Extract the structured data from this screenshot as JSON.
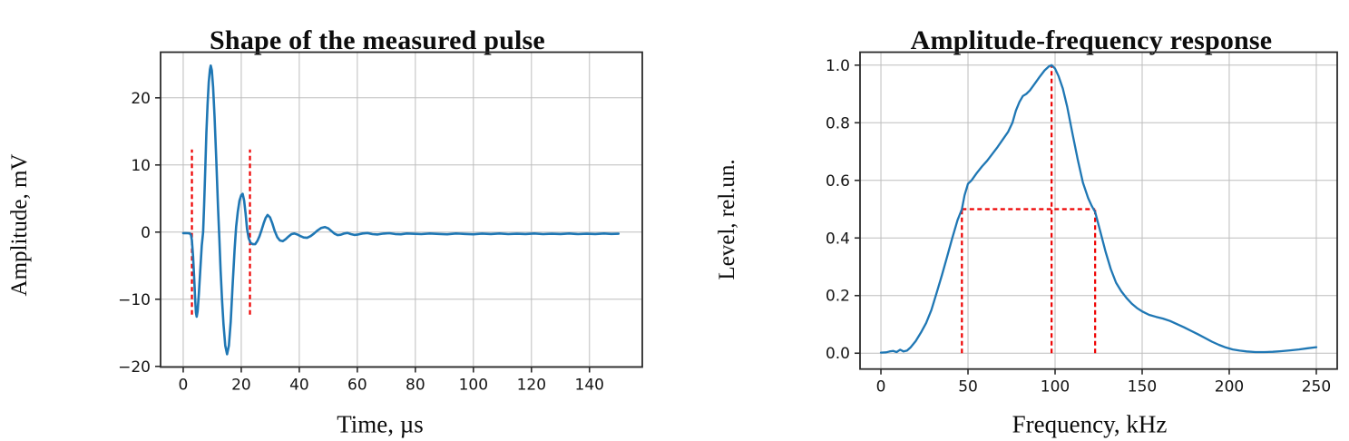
{
  "page": {
    "background": "#ffffff"
  },
  "chart_data": [
    {
      "type": "line",
      "title": "Shape of the measured pulse",
      "xlabel": "Time, µs",
      "ylabel": "Amplitude, mV",
      "xlim": [
        -7.8,
        158.2
      ],
      "ylim": [
        -20.1,
        26.8
      ],
      "grid": true,
      "legend": "none",
      "line_color": "#1f77b4",
      "annotation_color": "#ee0000",
      "xticks": [
        {
          "v": 0,
          "label": "0"
        },
        {
          "v": 20,
          "label": "20"
        },
        {
          "v": 40,
          "label": "40"
        },
        {
          "v": 60,
          "label": "60"
        },
        {
          "v": 80,
          "label": "80"
        },
        {
          "v": 100,
          "label": "100"
        },
        {
          "v": 120,
          "label": "120"
        },
        {
          "v": 140,
          "label": "140"
        }
      ],
      "yticks": [
        {
          "v": -20,
          "label": "−20"
        },
        {
          "v": -10,
          "label": "−10"
        },
        {
          "v": 0,
          "label": "0"
        },
        {
          "v": 10,
          "label": "10"
        },
        {
          "v": 20,
          "label": "20"
        }
      ],
      "series": [
        {
          "name": "measured-pulse",
          "x": [
            0,
            0.8,
            1.6,
            2.3,
            2.7,
            3,
            3.4,
            3.8,
            4.1,
            4.4,
            4.65,
            4.95,
            5.4,
            5.9,
            6.4,
            6.85,
            7.2,
            7.6,
            8,
            8.4,
            8.8,
            9.2,
            9.5,
            9.85,
            10.3,
            10.8,
            11.4,
            12,
            12.45,
            12.9,
            13.4,
            13.9,
            14.5,
            15.1,
            15.75,
            16.35,
            17,
            17.7,
            18.25,
            18.8,
            19.4,
            20,
            20.5,
            21,
            21.5,
            22,
            22.55,
            23.2,
            24,
            24.8,
            25.6,
            26.3,
            27,
            27.7,
            28.4,
            29.1,
            29.9,
            30.7,
            31.5,
            32.4,
            33.3,
            34.3,
            35.3,
            36.3,
            37.3,
            38.3,
            39.3,
            40.4,
            41.5,
            42.7,
            43.9,
            45.1,
            46.3,
            47.5,
            48.8,
            50,
            51.1,
            52.2,
            53.2,
            54.3,
            55.4,
            56.6,
            57.8,
            59,
            60.3,
            61.8,
            63.5,
            65.2,
            67,
            69,
            71,
            73,
            75,
            77,
            79,
            82,
            85,
            88,
            91,
            94,
            97,
            100,
            103,
            106,
            109,
            112,
            115,
            118,
            121,
            124,
            127,
            130,
            133,
            136,
            139,
            142,
            145,
            147.5,
            150
          ],
          "y": [
            -0.15,
            -0.15,
            -0.17,
            -0.2,
            -0.45,
            -1.2,
            -3.6,
            -7,
            -10,
            -12,
            -12.6,
            -11.8,
            -9.2,
            -5.6,
            -2,
            0,
            4,
            9.5,
            14.8,
            19,
            22.3,
            24.2,
            24.8,
            24.1,
            21.6,
            17.2,
            10.8,
            3.8,
            -1,
            -5.8,
            -10.2,
            -13.8,
            -16.9,
            -18.2,
            -16.9,
            -13.4,
            -8.2,
            -2.6,
            0.8,
            3,
            4.7,
            5.5,
            5.7,
            4.7,
            2.8,
            0.5,
            -0.9,
            -1.6,
            -1.8,
            -1.8,
            -1.3,
            -0.6,
            0.3,
            1.3,
            2.1,
            2.55,
            2.2,
            1.3,
            0.2,
            -0.75,
            -1.25,
            -1.35,
            -1.05,
            -0.65,
            -0.3,
            -0.2,
            -0.35,
            -0.6,
            -0.8,
            -0.85,
            -0.6,
            -0.2,
            0.25,
            0.6,
            0.75,
            0.55,
            0.15,
            -0.25,
            -0.45,
            -0.4,
            -0.22,
            -0.12,
            -0.3,
            -0.42,
            -0.35,
            -0.2,
            -0.14,
            -0.3,
            -0.35,
            -0.22,
            -0.16,
            -0.28,
            -0.32,
            -0.2,
            -0.25,
            -0.3,
            -0.2,
            -0.27,
            -0.32,
            -0.2,
            -0.27,
            -0.32,
            -0.22,
            -0.28,
            -0.2,
            -0.3,
            -0.24,
            -0.28,
            -0.2,
            -0.3,
            -0.24,
            -0.28,
            -0.2,
            -0.3,
            -0.25,
            -0.28,
            -0.2,
            -0.27,
            -0.25
          ]
        }
      ],
      "annotations": [
        {
          "name": "pulse-start-marker",
          "type": "vline",
          "x": 3,
          "y0": -12.3,
          "y1": 12.3
        },
        {
          "name": "pulse-end-marker",
          "type": "vline",
          "x": 23,
          "y0": -12.3,
          "y1": 12.3
        }
      ]
    },
    {
      "type": "line",
      "title": "Amplitude-frequency response",
      "xlabel": "Frequency, kHz",
      "ylabel": "Level, rel.un.",
      "xlim": [
        -12,
        262
      ],
      "ylim": [
        -0.055,
        1.045
      ],
      "grid": true,
      "legend": "none",
      "line_color": "#1f77b4",
      "annotation_color": "#ee0000",
      "xticks": [
        {
          "v": 0,
          "label": "0"
        },
        {
          "v": 50,
          "label": "50"
        },
        {
          "v": 100,
          "label": "100"
        },
        {
          "v": 150,
          "label": "150"
        },
        {
          "v": 200,
          "label": "200"
        },
        {
          "v": 250,
          "label": "250"
        }
      ],
      "yticks": [
        {
          "v": 0,
          "label": "0.0"
        },
        {
          "v": 0.2,
          "label": "0.2"
        },
        {
          "v": 0.4,
          "label": "0.4"
        },
        {
          "v": 0.6,
          "label": "0.6"
        },
        {
          "v": 0.8,
          "label": "0.8"
        },
        {
          "v": 1.0,
          "label": "1.0"
        }
      ],
      "series": [
        {
          "name": "frequency-response",
          "x": [
            0,
            3,
            5,
            7,
            9,
            11,
            13,
            15,
            17,
            20,
            23,
            26,
            29,
            32,
            35,
            38,
            41,
            44,
            46.5,
            48,
            50,
            52,
            55,
            58,
            61,
            64,
            67,
            70,
            73,
            75.5,
            77.5,
            79.5,
            81.5,
            83.5,
            85.5,
            88,
            91,
            94,
            96.5,
            98,
            100,
            102,
            104.5,
            107,
            110,
            113,
            116,
            119,
            121,
            123,
            126,
            129,
            132,
            135,
            138,
            141,
            144,
            147,
            150,
            154,
            158,
            162,
            166,
            170,
            174,
            178,
            182,
            186,
            190,
            194,
            198,
            202,
            206,
            210,
            215,
            220,
            225,
            230,
            235,
            240,
            245,
            250
          ],
          "y": [
            0.002,
            0.003,
            0.006,
            0.008,
            0.004,
            0.012,
            0.006,
            0.009,
            0.02,
            0.042,
            0.072,
            0.105,
            0.15,
            0.21,
            0.27,
            0.335,
            0.4,
            0.462,
            0.5,
            0.548,
            0.588,
            0.6,
            0.625,
            0.648,
            0.668,
            0.692,
            0.716,
            0.742,
            0.768,
            0.8,
            0.842,
            0.872,
            0.893,
            0.9,
            0.912,
            0.933,
            0.958,
            0.982,
            0.996,
            1.0,
            0.988,
            0.962,
            0.918,
            0.855,
            0.762,
            0.672,
            0.592,
            0.538,
            0.512,
            0.49,
            0.422,
            0.352,
            0.292,
            0.245,
            0.215,
            0.192,
            0.172,
            0.157,
            0.145,
            0.133,
            0.126,
            0.12,
            0.112,
            0.101,
            0.09,
            0.078,
            0.066,
            0.053,
            0.04,
            0.029,
            0.02,
            0.013,
            0.009,
            0.006,
            0.004,
            0.004,
            0.005,
            0.007,
            0.01,
            0.013,
            0.017,
            0.021
          ]
        }
      ],
      "annotations": [
        {
          "name": "band-low-marker",
          "type": "vline",
          "x": 46.5,
          "y0": 0,
          "y1": 0.5
        },
        {
          "name": "peak-frequency-marker",
          "type": "vline",
          "x": 98,
          "y0": 0,
          "y1": 1.0
        },
        {
          "name": "band-high-marker",
          "type": "vline",
          "x": 123,
          "y0": 0,
          "y1": 0.5
        },
        {
          "name": "half-level-marker",
          "type": "hline",
          "y": 0.5,
          "x0": 46.5,
          "x1": 123
        }
      ]
    }
  ]
}
